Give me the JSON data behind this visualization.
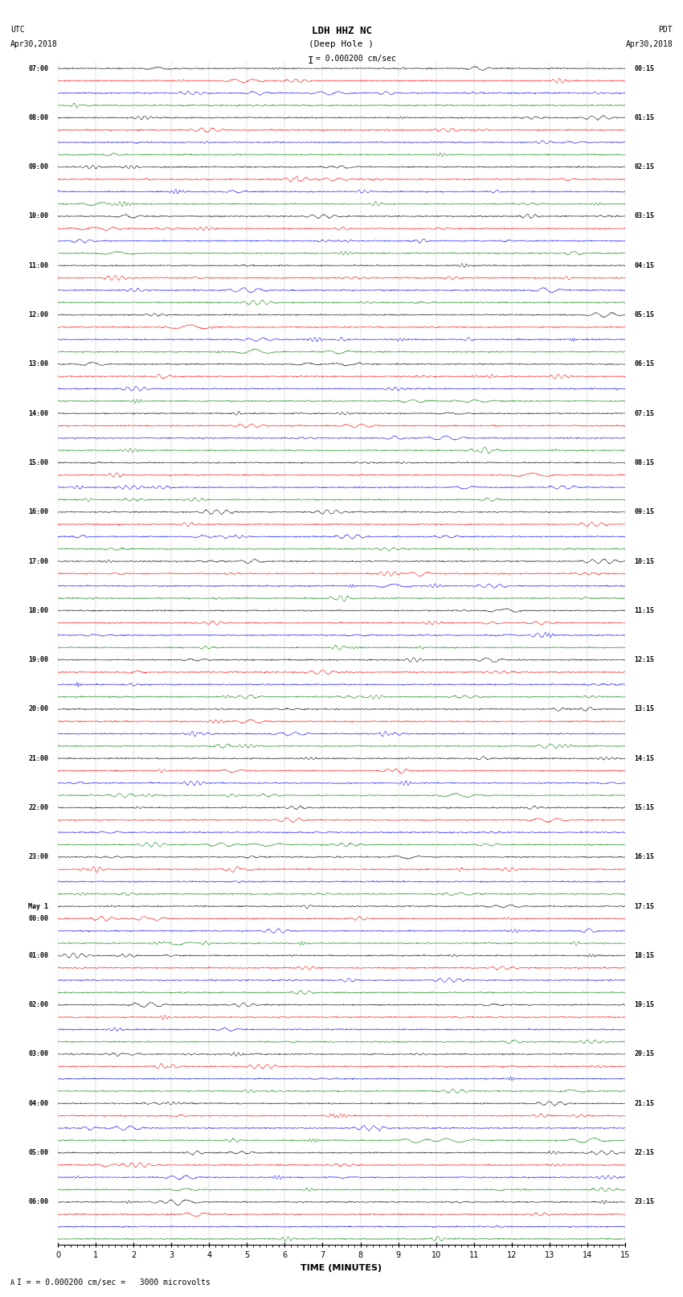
{
  "title_line1": "LDH HHZ NC",
  "title_line2": "(Deep Hole )",
  "scale_bar_text": "= 0.000200 cm/sec",
  "footer_text": "= 0.000200 cm/sec =   3000 microvolts",
  "xlabel": "TIME (MINUTES)",
  "fig_width": 8.5,
  "fig_height": 16.13,
  "dpi": 100,
  "bg_color": "#ffffff",
  "trace_colors": [
    "black",
    "red",
    "blue",
    "green"
  ],
  "num_rows": 96,
  "xlim": [
    0,
    15
  ],
  "xticks": [
    0,
    1,
    2,
    3,
    4,
    5,
    6,
    7,
    8,
    9,
    10,
    11,
    12,
    13,
    14,
    15
  ],
  "amplitude": 0.08,
  "left_time_labels": [
    "07:00",
    "",
    "",
    "",
    "08:00",
    "",
    "",
    "",
    "09:00",
    "",
    "",
    "",
    "10:00",
    "",
    "",
    "",
    "11:00",
    "",
    "",
    "",
    "12:00",
    "",
    "",
    "",
    "13:00",
    "",
    "",
    "",
    "14:00",
    "",
    "",
    "",
    "15:00",
    "",
    "",
    "",
    "16:00",
    "",
    "",
    "",
    "17:00",
    "",
    "",
    "",
    "18:00",
    "",
    "",
    "",
    "19:00",
    "",
    "",
    "",
    "20:00",
    "",
    "",
    "",
    "21:00",
    "",
    "",
    "",
    "22:00",
    "",
    "",
    "",
    "23:00",
    "",
    "",
    "",
    "May 1",
    "00:00",
    "",
    "",
    "01:00",
    "",
    "",
    "",
    "02:00",
    "",
    "",
    "",
    "03:00",
    "",
    "",
    "",
    "04:00",
    "",
    "",
    "",
    "05:00",
    "",
    "",
    "",
    "06:00",
    "",
    "",
    ""
  ],
  "right_time_labels": [
    "00:15",
    "",
    "",
    "",
    "01:15",
    "",
    "",
    "",
    "02:15",
    "",
    "",
    "",
    "03:15",
    "",
    "",
    "",
    "04:15",
    "",
    "",
    "",
    "05:15",
    "",
    "",
    "",
    "06:15",
    "",
    "",
    "",
    "07:15",
    "",
    "",
    "",
    "08:15",
    "",
    "",
    "",
    "09:15",
    "",
    "",
    "",
    "10:15",
    "",
    "",
    "",
    "11:15",
    "",
    "",
    "",
    "12:15",
    "",
    "",
    "",
    "13:15",
    "",
    "",
    "",
    "14:15",
    "",
    "",
    "",
    "15:15",
    "",
    "",
    "",
    "16:15",
    "",
    "",
    "",
    "17:15",
    "",
    "",
    "",
    "18:15",
    "",
    "",
    "",
    "19:15",
    "",
    "",
    "",
    "20:15",
    "",
    "",
    "",
    "21:15",
    "",
    "",
    "",
    "22:15",
    "",
    "",
    "",
    "23:15",
    "",
    "",
    ""
  ]
}
